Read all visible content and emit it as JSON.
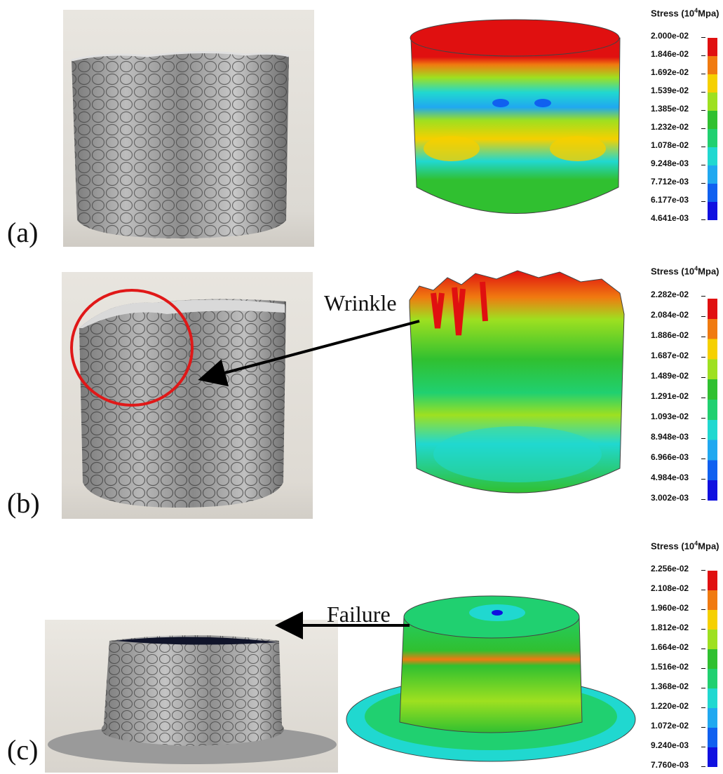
{
  "panels": [
    {
      "label": "(a)",
      "callout": "",
      "legend": {
        "title_prefix": "Stress (10",
        "title_exp": "4",
        "title_unit": "Mpa)",
        "ticks": [
          "2.000e-02",
          "1.846e-02",
          "1.692e-02",
          "1.539e-02",
          "1.385e-02",
          "1.232e-02",
          "1.078e-02",
          "9.248e-03",
          "7.712e-03",
          "6.177e-03",
          "4.641e-03"
        ]
      }
    },
    {
      "label": "(b)",
      "callout": "Wrinkle",
      "legend": {
        "title_prefix": "Stress (10",
        "title_exp": "4",
        "title_unit": "Mpa)",
        "ticks": [
          "2.282e-02",
          "2.084e-02",
          "1.886e-02",
          "1.687e-02",
          "1.489e-02",
          "1.291e-02",
          "1.093e-02",
          "8.948e-03",
          "6.966e-03",
          "4.984e-03",
          "3.002e-03"
        ]
      }
    },
    {
      "label": "(c)",
      "callout": "Failure",
      "legend": {
        "title_prefix": "Stress (10",
        "title_exp": "4",
        "title_unit": "Mpa)",
        "ticks": [
          "2.256e-02",
          "2.108e-02",
          "1.960e-02",
          "1.812e-02",
          "1.664e-02",
          "1.516e-02",
          "1.368e-02",
          "1.220e-02",
          "1.072e-02",
          "9.240e-03",
          "7.760e-03"
        ]
      }
    }
  ],
  "colormap": [
    "#e01010",
    "#f07a10",
    "#f5d000",
    "#9ee020",
    "#30c030",
    "#20d070",
    "#20d8d0",
    "#20a8f0",
    "#1060f0",
    "#1010e0"
  ],
  "colors": {
    "highlight_circle": "#e01818",
    "arrow": "#000000"
  }
}
